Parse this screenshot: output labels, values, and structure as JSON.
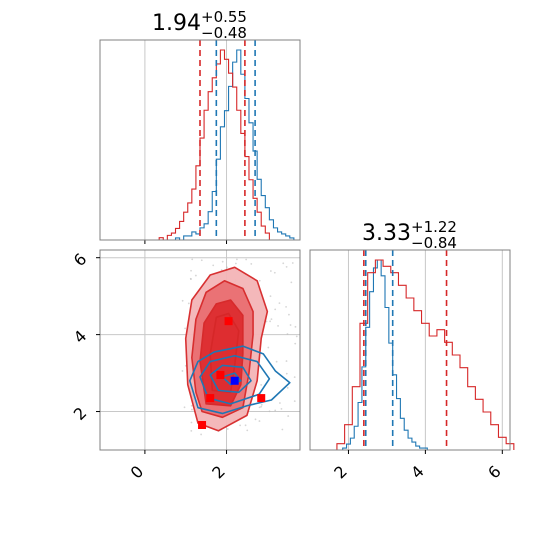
{
  "colors": {
    "blue": "#1f77b4",
    "red": "#d62728",
    "grid": "#c8c8c8",
    "axes": "#808080"
  },
  "chart_data": [
    {
      "panel": "top-left",
      "type": "histogram",
      "title": {
        "value": "1.94",
        "plus": "+0.55",
        "minus": "−0.48"
      },
      "xlim": [
        -1.1,
        3.8
      ],
      "xticks": [
        0,
        2
      ],
      "grid": true,
      "vlines": [
        {
          "series": "blue",
          "x": [
            1.75,
            2.7
          ]
        },
        {
          "series": "red",
          "x": [
            1.35,
            2.45
          ]
        }
      ],
      "series": [
        {
          "color": "blue",
          "x": [
            0.7,
            0.8,
            0.9,
            1.0,
            1.1,
            1.2,
            1.3,
            1.4,
            1.5,
            1.6,
            1.7,
            1.8,
            1.9,
            2.0,
            2.1,
            2.2,
            2.3,
            2.4,
            2.5,
            2.6,
            2.7,
            2.8,
            2.9,
            3.0,
            3.1,
            3.2,
            3.3,
            3.4,
            3.5,
            3.6,
            3.7
          ],
          "counts": [
            0,
            1,
            0,
            2,
            2,
            4,
            3,
            6,
            8,
            14,
            24,
            40,
            56,
            64,
            76,
            88,
            94,
            82,
            70,
            58,
            44,
            30,
            22,
            16,
            10,
            6,
            4,
            3,
            2,
            1,
            0
          ]
        },
        {
          "color": "red",
          "x": [
            0.3,
            0.4,
            0.5,
            0.6,
            0.7,
            0.8,
            0.9,
            1.0,
            1.1,
            1.2,
            1.3,
            1.4,
            1.5,
            1.6,
            1.7,
            1.8,
            1.9,
            2.0,
            2.1,
            2.2,
            2.3,
            2.4,
            2.5,
            2.6,
            2.7,
            2.8,
            2.9,
            3.0,
            3.1
          ],
          "counts": [
            0,
            1,
            0,
            2,
            3,
            5,
            8,
            12,
            16,
            22,
            32,
            44,
            56,
            64,
            70,
            76,
            82,
            78,
            72,
            66,
            56,
            46,
            36,
            26,
            18,
            12,
            6,
            3,
            0
          ]
        }
      ]
    },
    {
      "panel": "bottom-left",
      "type": "contour",
      "xlim": [
        -1.1,
        3.8
      ],
      "ylim": [
        1.0,
        6.2
      ],
      "xticks": [
        0,
        2
      ],
      "yticks": [
        2,
        4,
        6
      ],
      "grid": true,
      "red_markers": [
        [
          1.4,
          1.65
        ],
        [
          2.85,
          2.35
        ],
        [
          1.6,
          2.35
        ],
        [
          1.85,
          2.95
        ],
        [
          2.05,
          4.35
        ]
      ],
      "blue_markers": [
        [
          2.2,
          2.8
        ]
      ],
      "red_fill_colors": [
        "#f4b5b7",
        "#ea6f72",
        "#de2d30"
      ],
      "red_contours": [
        [
          [
            1.3,
            1.7
          ],
          [
            1.8,
            1.5
          ],
          [
            2.5,
            1.9
          ],
          [
            2.75,
            2.8
          ],
          [
            2.85,
            3.9
          ],
          [
            3.0,
            4.6
          ],
          [
            2.75,
            5.4
          ],
          [
            2.2,
            5.75
          ],
          [
            1.6,
            5.55
          ],
          [
            1.15,
            4.9
          ],
          [
            1.0,
            3.9
          ],
          [
            1.05,
            2.7
          ]
        ],
        [
          [
            1.4,
            2.0
          ],
          [
            1.9,
            1.85
          ],
          [
            2.4,
            2.1
          ],
          [
            2.55,
            3.0
          ],
          [
            2.65,
            4.0
          ],
          [
            2.65,
            4.6
          ],
          [
            2.4,
            5.2
          ],
          [
            1.95,
            5.4
          ],
          [
            1.5,
            5.1
          ],
          [
            1.25,
            4.4
          ],
          [
            1.15,
            3.4
          ],
          [
            1.25,
            2.5
          ]
        ],
        [
          [
            1.5,
            2.2
          ],
          [
            2.1,
            2.15
          ],
          [
            2.35,
            2.7
          ],
          [
            2.4,
            3.5
          ],
          [
            2.4,
            4.5
          ],
          [
            2.1,
            4.9
          ],
          [
            1.75,
            4.8
          ],
          [
            1.45,
            4.3
          ],
          [
            1.35,
            3.3
          ]
        ],
        [
          [
            1.65,
            2.55
          ],
          [
            2.1,
            2.5
          ],
          [
            2.2,
            3.2
          ],
          [
            2.3,
            4.1
          ],
          [
            2.05,
            4.55
          ],
          [
            1.75,
            4.45
          ],
          [
            1.6,
            3.5
          ]
        ]
      ],
      "blue_contours": [
        [
          [
            1.1,
            2.8
          ],
          [
            1.3,
            2.1
          ],
          [
            1.9,
            1.95
          ],
          [
            2.5,
            2.15
          ],
          [
            3.1,
            2.3
          ],
          [
            3.55,
            2.75
          ],
          [
            3.2,
            3.05
          ],
          [
            2.9,
            3.5
          ],
          [
            2.4,
            3.7
          ],
          [
            1.7,
            3.55
          ],
          [
            1.3,
            3.3
          ]
        ],
        [
          [
            1.35,
            2.9
          ],
          [
            1.55,
            2.35
          ],
          [
            2.1,
            2.2
          ],
          [
            2.8,
            2.45
          ],
          [
            3.05,
            2.85
          ],
          [
            2.75,
            3.3
          ],
          [
            2.2,
            3.45
          ],
          [
            1.6,
            3.3
          ]
        ],
        [
          [
            1.6,
            2.95
          ],
          [
            1.8,
            2.55
          ],
          [
            2.3,
            2.5
          ],
          [
            2.6,
            2.8
          ],
          [
            2.4,
            3.15
          ],
          [
            1.9,
            3.2
          ]
        ],
        [
          [
            1.9,
            2.9
          ],
          [
            2.1,
            2.7
          ],
          [
            2.35,
            2.8
          ],
          [
            2.2,
            3.0
          ]
        ]
      ]
    },
    {
      "panel": "bottom-right",
      "type": "histogram",
      "title": {
        "value": "3.33",
        "plus": "+1.22",
        "minus": "−0.84"
      },
      "xlim": [
        1.0,
        6.2
      ],
      "xticks": [
        2,
        4,
        6
      ],
      "grid": true,
      "vlines": [
        {
          "series": "blue",
          "x": [
            2.45,
            3.15
          ]
        },
        {
          "series": "red",
          "x": [
            2.4,
            4.55
          ]
        }
      ],
      "series": [
        {
          "color": "blue",
          "x": [
            1.8,
            1.9,
            2.0,
            2.1,
            2.2,
            2.3,
            2.4,
            2.5,
            2.6,
            2.7,
            2.8,
            2.9,
            3.0,
            3.1,
            3.2,
            3.3,
            3.4,
            3.5,
            3.6,
            3.7,
            3.8,
            3.9,
            4.0,
            4.1,
            4.2
          ],
          "counts": [
            0,
            1,
            3,
            6,
            12,
            24,
            42,
            62,
            80,
            92,
            96,
            88,
            72,
            54,
            38,
            26,
            16,
            10,
            6,
            4,
            2,
            1,
            1,
            0,
            0
          ]
        },
        {
          "color": "red",
          "x": [
            1.6,
            1.8,
            2.0,
            2.2,
            2.4,
            2.6,
            2.8,
            3.0,
            3.2,
            3.4,
            3.6,
            3.8,
            4.0,
            4.2,
            4.4,
            4.6,
            4.8,
            5.0,
            5.2,
            5.4,
            5.6,
            5.8,
            6.0,
            6.2
          ],
          "counts": [
            0,
            1,
            4,
            10,
            20,
            28,
            30,
            29,
            28,
            26,
            24,
            22,
            20,
            18,
            19,
            17,
            15,
            13,
            10,
            8,
            6,
            4,
            2,
            1
          ]
        }
      ]
    }
  ]
}
